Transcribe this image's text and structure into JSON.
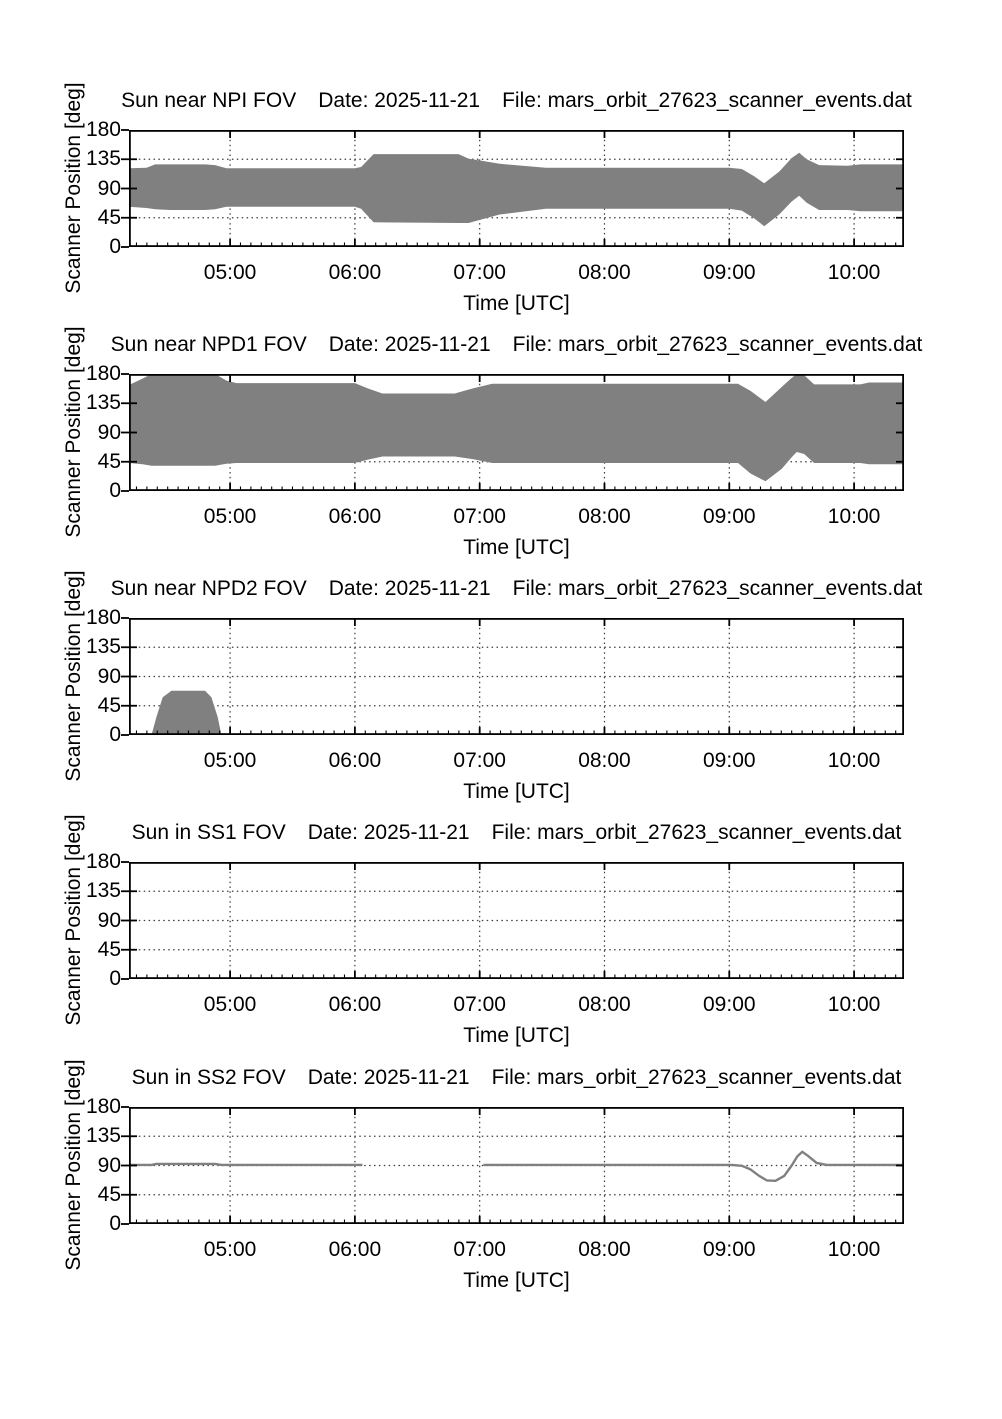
{
  "style": {
    "background": "#ffffff",
    "fill_color": "#808080",
    "line_color": "#808080",
    "axis_color": "#000000",
    "grid_color": "#3c3c3c",
    "text_color": "#000000"
  },
  "chart_data": [
    {
      "id": "npi",
      "type": "area",
      "title": "Sun near NPI FOV   Date: 2025-11-21   File: mars_orbit_27623_scanner_events.dat",
      "title_parts": [
        "Sun near NPI FOV",
        "Date: 2025-11-21",
        "File: mars_orbit_27623_scanner_events.dat"
      ],
      "xlabel": "Time [UTC]",
      "ylabel": "Scanner Position [deg]",
      "ylim": [
        0,
        180
      ],
      "yticks": [
        0,
        45,
        90,
        135,
        180
      ],
      "ytick_labels": [
        "0",
        "45",
        "90",
        "135",
        "180"
      ],
      "xlim_hours": [
        4.19,
        10.4
      ],
      "xtick_hours": [
        5,
        6,
        7,
        8,
        9,
        10
      ],
      "xtick_labels": [
        "05:00",
        "06:00",
        "07:00",
        "08:00",
        "09:00",
        "10:00"
      ],
      "grid": "dotted",
      "band": {
        "x": [
          4.19,
          4.33,
          4.4,
          4.52,
          4.8,
          4.88,
          4.97,
          6.0,
          6.05,
          6.15,
          6.83,
          6.91,
          7.16,
          7.53,
          9.0,
          9.1,
          9.2,
          9.28,
          9.4,
          9.5,
          9.56,
          9.62,
          9.72,
          9.95,
          10.05,
          10.4
        ],
        "upper": [
          121,
          122,
          127,
          127,
          127,
          126,
          121,
          121,
          123,
          143,
          143,
          136,
          128,
          122,
          122,
          120,
          109,
          98,
          116,
          137,
          145,
          135,
          126,
          125,
          127,
          127
        ],
        "lower": [
          62,
          60,
          58,
          57,
          57,
          58,
          62,
          62,
          59,
          38,
          37,
          37,
          50,
          59,
          59,
          56,
          44,
          32,
          50,
          70,
          79,
          68,
          57,
          57,
          55,
          55
        ]
      }
    },
    {
      "id": "npd1",
      "type": "area",
      "title": "Sun near NPD1 FOV   Date: 2025-11-21   File: mars_orbit_27623_scanner_events.dat",
      "title_parts": [
        "Sun near NPD1 FOV",
        "Date: 2025-11-21",
        "File: mars_orbit_27623_scanner_events.dat"
      ],
      "xlabel": "Time [UTC]",
      "ylabel": "Scanner Position [deg]",
      "ylim": [
        0,
        180
      ],
      "yticks": [
        0,
        45,
        90,
        135,
        180
      ],
      "ytick_labels": [
        "0",
        "45",
        "90",
        "135",
        "180"
      ],
      "xlim_hours": [
        4.19,
        10.4
      ],
      "xtick_hours": [
        5,
        6,
        7,
        8,
        9,
        10
      ],
      "xtick_labels": [
        "05:00",
        "06:00",
        "07:00",
        "08:00",
        "09:00",
        "10:00"
      ],
      "grid": "dotted",
      "band": {
        "x": [
          4.19,
          4.3,
          4.37,
          4.88,
          4.97,
          5.05,
          6.0,
          6.1,
          6.22,
          6.8,
          6.95,
          7.1,
          9.07,
          9.17,
          9.29,
          9.42,
          9.5,
          9.54,
          9.6,
          9.68,
          10.05,
          10.12,
          10.4
        ],
        "upper": [
          163,
          173,
          180,
          180,
          170,
          166,
          166,
          158,
          150,
          150,
          158,
          165,
          165,
          154,
          137,
          160,
          174,
          180,
          178,
          164,
          164,
          167,
          167
        ],
        "lower": [
          43,
          41,
          39,
          39,
          42,
          43,
          43,
          48,
          53,
          53,
          49,
          43,
          43,
          27,
          15,
          34,
          52,
          60,
          57,
          43,
          43,
          41,
          41
        ]
      }
    },
    {
      "id": "npd2",
      "type": "area",
      "title": "Sun near NPD2 FOV   Date: 2025-11-21   File: mars_orbit_27623_scanner_events.dat",
      "title_parts": [
        "Sun near NPD2 FOV",
        "Date: 2025-11-21",
        "File: mars_orbit_27623_scanner_events.dat"
      ],
      "xlabel": "Time [UTC]",
      "ylabel": "Scanner Position [deg]",
      "ylim": [
        0,
        180
      ],
      "yticks": [
        0,
        45,
        90,
        135,
        180
      ],
      "ytick_labels": [
        "0",
        "45",
        "90",
        "135",
        "180"
      ],
      "xlim_hours": [
        4.19,
        10.4
      ],
      "xtick_hours": [
        5,
        6,
        7,
        8,
        9,
        10
      ],
      "xtick_labels": [
        "05:00",
        "06:00",
        "07:00",
        "08:00",
        "09:00",
        "10:00"
      ],
      "grid": "dotted",
      "band": {
        "x": [
          4.37,
          4.41,
          4.46,
          4.53,
          4.8,
          4.85,
          4.9,
          4.93
        ],
        "upper": [
          0,
          28,
          58,
          68,
          68,
          58,
          28,
          0
        ],
        "lower": [
          0,
          0,
          0,
          0,
          0,
          0,
          0,
          0
        ]
      }
    },
    {
      "id": "ss1",
      "type": "area",
      "title": "Sun in SS1 FOV   Date: 2025-11-21   File: mars_orbit_27623_scanner_events.dat",
      "title_parts": [
        "Sun in SS1 FOV",
        "Date: 2025-11-21",
        "File: mars_orbit_27623_scanner_events.dat"
      ],
      "xlabel": "Time [UTC]",
      "ylabel": "Scanner Position [deg]",
      "ylim": [
        0,
        180
      ],
      "yticks": [
        0,
        45,
        90,
        135,
        180
      ],
      "ytick_labels": [
        "0",
        "45",
        "90",
        "135",
        "180"
      ],
      "xlim_hours": [
        4.19,
        10.4
      ],
      "xtick_hours": [
        5,
        6,
        7,
        8,
        9,
        10
      ],
      "xtick_labels": [
        "05:00",
        "06:00",
        "07:00",
        "08:00",
        "09:00",
        "10:00"
      ],
      "grid": "dotted",
      "band": {
        "x": [],
        "upper": [],
        "lower": []
      }
    },
    {
      "id": "ss2",
      "type": "line",
      "title": "Sun in SS2 FOV   Date: 2025-11-21   File: mars_orbit_27623_scanner_events.dat",
      "title_parts": [
        "Sun in SS2 FOV",
        "Date: 2025-11-21",
        "File: mars_orbit_27623_scanner_events.dat"
      ],
      "xlabel": "Time [UTC]",
      "ylabel": "Scanner Position [deg]",
      "ylim": [
        0,
        180
      ],
      "yticks": [
        0,
        45,
        90,
        135,
        180
      ],
      "ytick_labels": [
        "0",
        "45",
        "90",
        "135",
        "180"
      ],
      "xlim_hours": [
        4.19,
        10.4
      ],
      "xtick_hours": [
        5,
        6,
        7,
        8,
        9,
        10
      ],
      "xtick_labels": [
        "05:00",
        "06:00",
        "07:00",
        "08:00",
        "09:00",
        "10:00"
      ],
      "grid": "dotted",
      "segments": [
        {
          "x": [
            4.19,
            4.37,
            4.41,
            4.88,
            4.93,
            6.06
          ],
          "y": [
            91,
            91,
            92.5,
            92.5,
            91,
            91
          ]
        },
        {
          "x": [
            7.03,
            9.02,
            9.1,
            9.17,
            9.24,
            9.3,
            9.37,
            9.44,
            9.5,
            9.545,
            9.585,
            9.63,
            9.7,
            9.78,
            10.4
          ],
          "y": [
            91,
            91,
            89.5,
            84,
            74,
            67,
            66.5,
            74,
            90,
            104,
            111,
            105,
            94,
            91,
            91
          ]
        }
      ]
    }
  ]
}
